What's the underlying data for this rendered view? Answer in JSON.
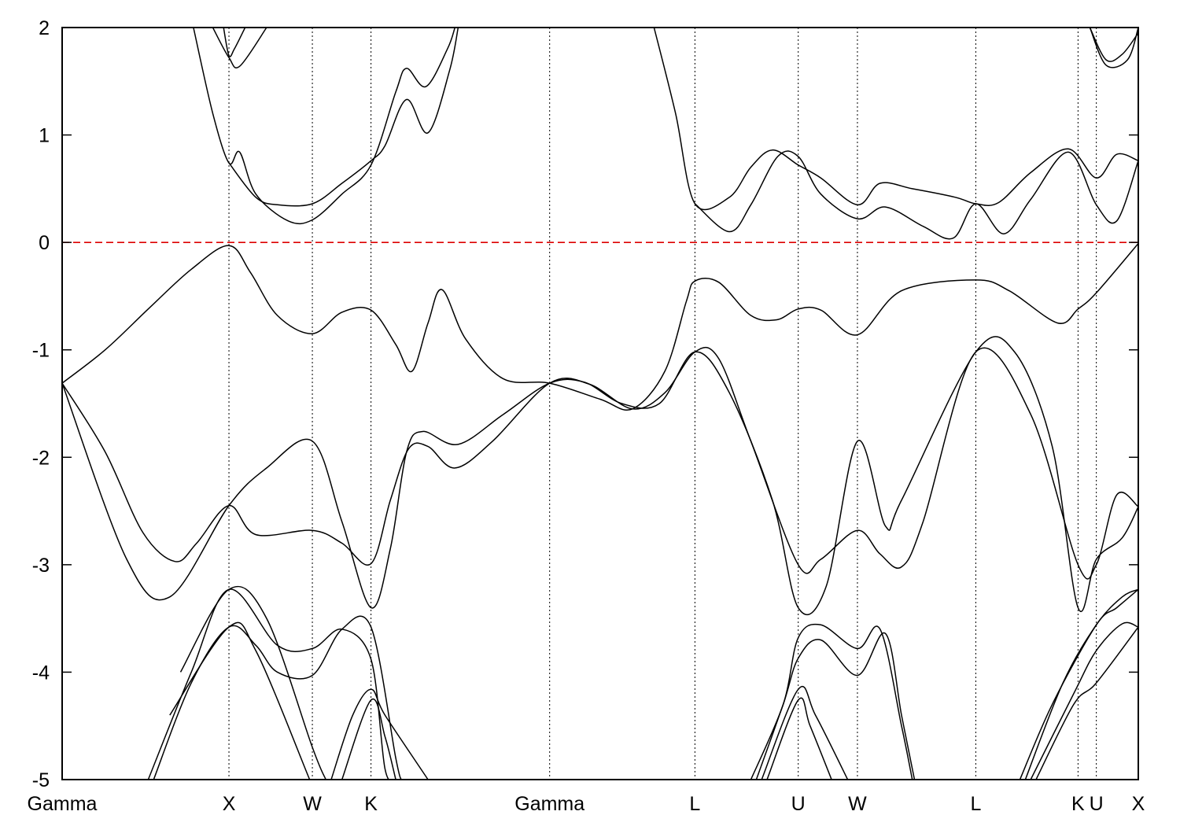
{
  "chart_data": {
    "type": "line",
    "title": "",
    "xlabel": "",
    "ylabel": "",
    "xlim": [
      0,
      1
    ],
    "ylim": [
      -5,
      2
    ],
    "yticks": [
      2,
      1,
      0,
      -1,
      -2,
      -3,
      -4,
      -5
    ],
    "ytick_labels": [
      "2",
      "1",
      "0",
      "-1",
      "-2",
      "-3",
      "-4",
      "-5"
    ],
    "kpoints": [
      {
        "label": "Gamma",
        "x": 0.0
      },
      {
        "label": "X",
        "x": 0.155
      },
      {
        "label": "W",
        "x": 0.2325
      },
      {
        "label": "K",
        "x": 0.287
      },
      {
        "label": "Gamma",
        "x": 0.453
      },
      {
        "label": "L",
        "x": 0.588
      },
      {
        "label": "U",
        "x": 0.684
      },
      {
        "label": "W",
        "x": 0.739
      },
      {
        "label": "L",
        "x": 0.849
      },
      {
        "label": "K",
        "x": 0.944
      },
      {
        "label": "U",
        "x": 0.961
      },
      {
        "label": "X",
        "x": 1.0
      }
    ],
    "fermi_level": {
      "value": 0,
      "color": "#dd0000",
      "style": "dashed"
    },
    "line_color": "#000000",
    "series": [
      {
        "points": [
          [
            0.0,
            -1.31
          ],
          [
            0.04,
            -1.0
          ],
          [
            0.08,
            -0.62
          ],
          [
            0.12,
            -0.25
          ],
          [
            0.155,
            -0.03
          ],
          [
            0.175,
            -0.28
          ],
          [
            0.2,
            -0.68
          ],
          [
            0.2325,
            -0.85
          ],
          [
            0.26,
            -0.65
          ],
          [
            0.287,
            -0.63
          ],
          [
            0.31,
            -0.95
          ],
          [
            0.325,
            -1.2
          ],
          [
            0.34,
            -0.75
          ],
          [
            0.353,
            -0.44
          ],
          [
            0.375,
            -0.9
          ],
          [
            0.41,
            -1.27
          ],
          [
            0.453,
            -1.31
          ],
          [
            0.5,
            -1.46
          ],
          [
            0.53,
            -1.55
          ],
          [
            0.56,
            -1.2
          ],
          [
            0.58,
            -0.55
          ],
          [
            0.588,
            -0.36
          ],
          [
            0.61,
            -0.37
          ],
          [
            0.64,
            -0.68
          ],
          [
            0.664,
            -0.72
          ],
          [
            0.684,
            -0.62
          ],
          [
            0.705,
            -0.63
          ],
          [
            0.739,
            -0.86
          ],
          [
            0.78,
            -0.45
          ],
          [
            0.849,
            -0.35
          ],
          [
            0.88,
            -0.45
          ],
          [
            0.925,
            -0.75
          ],
          [
            0.944,
            -0.62
          ],
          [
            0.961,
            -0.47
          ],
          [
            1.0,
            -0.01
          ]
        ]
      },
      {
        "points": [
          [
            0.0,
            -1.31
          ],
          [
            0.04,
            -1.95
          ],
          [
            0.075,
            -2.7
          ],
          [
            0.105,
            -2.97
          ],
          [
            0.125,
            -2.8
          ],
          [
            0.155,
            -2.45
          ],
          [
            0.18,
            -2.72
          ],
          [
            0.2325,
            -2.68
          ],
          [
            0.26,
            -2.8
          ],
          [
            0.287,
            -2.99
          ],
          [
            0.305,
            -2.4
          ],
          [
            0.322,
            -1.92
          ],
          [
            0.34,
            -1.9
          ],
          [
            0.365,
            -2.1
          ],
          [
            0.4,
            -1.85
          ],
          [
            0.453,
            -1.31
          ],
          [
            0.49,
            -1.32
          ],
          [
            0.53,
            -1.55
          ],
          [
            0.56,
            -1.4
          ],
          [
            0.588,
            -1.02
          ],
          [
            0.61,
            -1.08
          ],
          [
            0.64,
            -1.85
          ],
          [
            0.684,
            -3.0
          ],
          [
            0.705,
            -2.95
          ],
          [
            0.739,
            -2.68
          ],
          [
            0.76,
            -2.9
          ],
          [
            0.78,
            -3.02
          ],
          [
            0.8,
            -2.6
          ],
          [
            0.849,
            -1.02
          ],
          [
            0.9,
            -1.6
          ],
          [
            0.944,
            -3.0
          ],
          [
            0.961,
            -3.0
          ],
          [
            0.98,
            -2.35
          ],
          [
            1.0,
            -2.46
          ]
        ]
      },
      {
        "points": [
          [
            0.0,
            -1.31
          ],
          [
            0.06,
            -2.95
          ],
          [
            0.1,
            -3.3
          ],
          [
            0.155,
            -2.45
          ],
          [
            0.19,
            -2.1
          ],
          [
            0.2325,
            -1.85
          ],
          [
            0.26,
            -2.6
          ],
          [
            0.287,
            -3.4
          ],
          [
            0.305,
            -2.85
          ],
          [
            0.32,
            -1.95
          ],
          [
            0.335,
            -1.76
          ],
          [
            0.368,
            -1.88
          ],
          [
            0.41,
            -1.6
          ],
          [
            0.453,
            -1.31
          ],
          [
            0.485,
            -1.3
          ],
          [
            0.52,
            -1.5
          ],
          [
            0.555,
            -1.5
          ],
          [
            0.588,
            -1.02
          ],
          [
            0.62,
            -1.4
          ],
          [
            0.66,
            -2.4
          ],
          [
            0.684,
            -3.4
          ],
          [
            0.71,
            -3.2
          ],
          [
            0.739,
            -1.85
          ],
          [
            0.765,
            -2.64
          ],
          [
            0.78,
            -2.4
          ],
          [
            0.849,
            -1.02
          ],
          [
            0.885,
            -1.02
          ],
          [
            0.92,
            -1.9
          ],
          [
            0.944,
            -3.4
          ],
          [
            0.961,
            -2.95
          ],
          [
            0.985,
            -2.75
          ],
          [
            1.0,
            -2.46
          ]
        ]
      },
      {
        "points": [
          [
            0.155,
            0.74
          ],
          [
            0.18,
            0.42
          ],
          [
            0.2,
            0.35
          ],
          [
            0.2325,
            0.36
          ],
          [
            0.26,
            0.55
          ],
          [
            0.287,
            0.76
          ],
          [
            0.3,
            0.9
          ],
          [
            0.32,
            1.33
          ],
          [
            0.34,
            1.02
          ],
          [
            0.36,
            1.6
          ],
          [
            0.368,
            2.0
          ]
        ]
      },
      {
        "points": [
          [
            0.122,
            2.0
          ],
          [
            0.14,
            1.2
          ],
          [
            0.155,
            0.74
          ],
          [
            0.165,
            0.84
          ],
          [
            0.18,
            0.45
          ],
          [
            0.21,
            0.2
          ],
          [
            0.2325,
            0.21
          ],
          [
            0.26,
            0.45
          ],
          [
            0.287,
            0.72
          ],
          [
            0.31,
            1.4
          ],
          [
            0.32,
            1.62
          ],
          [
            0.338,
            1.45
          ],
          [
            0.358,
            1.8
          ],
          [
            0.365,
            2.0
          ]
        ]
      },
      {
        "points": [
          [
            0.15,
            2.0
          ],
          [
            0.155,
            1.74
          ],
          [
            0.16,
            1.8
          ],
          [
            0.17,
            2.0
          ]
        ]
      },
      {
        "points": [
          [
            0.14,
            2.0
          ],
          [
            0.155,
            1.72
          ],
          [
            0.165,
            1.64
          ],
          [
            0.19,
            2.0
          ]
        ]
      },
      {
        "points": [
          [
            0.55,
            2.0
          ],
          [
            0.57,
            1.2
          ],
          [
            0.588,
            0.36
          ],
          [
            0.62,
            0.42
          ],
          [
            0.64,
            0.7
          ],
          [
            0.66,
            0.86
          ],
          [
            0.684,
            0.72
          ],
          [
            0.705,
            0.6
          ],
          [
            0.739,
            0.35
          ],
          [
            0.76,
            0.55
          ],
          [
            0.79,
            0.5
          ],
          [
            0.83,
            0.42
          ],
          [
            0.849,
            0.36
          ],
          [
            0.87,
            0.37
          ],
          [
            0.9,
            0.65
          ],
          [
            0.935,
            0.87
          ],
          [
            0.961,
            0.6
          ],
          [
            0.98,
            0.82
          ],
          [
            1.0,
            0.76
          ]
        ]
      },
      {
        "points": [
          [
            0.588,
            0.36
          ],
          [
            0.62,
            0.1
          ],
          [
            0.64,
            0.35
          ],
          [
            0.665,
            0.8
          ],
          [
            0.684,
            0.8
          ],
          [
            0.705,
            0.45
          ],
          [
            0.739,
            0.22
          ],
          [
            0.765,
            0.33
          ],
          [
            0.8,
            0.15
          ],
          [
            0.828,
            0.04
          ],
          [
            0.849,
            0.36
          ],
          [
            0.875,
            0.08
          ],
          [
            0.9,
            0.4
          ],
          [
            0.935,
            0.84
          ],
          [
            0.961,
            0.35
          ],
          [
            0.98,
            0.2
          ],
          [
            1.0,
            0.76
          ]
        ]
      },
      {
        "points": [
          [
            0.955,
            2.0
          ],
          [
            0.97,
            1.7
          ],
          [
            0.985,
            1.75
          ],
          [
            1.0,
            1.95
          ]
        ]
      },
      {
        "points": [
          [
            0.955,
            2.0
          ],
          [
            0.97,
            1.65
          ],
          [
            0.99,
            1.7
          ],
          [
            1.0,
            2.0
          ]
        ]
      },
      {
        "points": [
          [
            0.08,
            -5.0
          ],
          [
            0.12,
            -4.0
          ],
          [
            0.155,
            -3.23
          ],
          [
            0.2,
            -3.75
          ],
          [
            0.2325,
            -3.78
          ],
          [
            0.26,
            -3.6
          ],
          [
            0.287,
            -3.88
          ],
          [
            0.3,
            -4.9
          ],
          [
            0.31,
            -5.0
          ]
        ]
      },
      {
        "points": [
          [
            0.085,
            -5.0
          ],
          [
            0.12,
            -4.1
          ],
          [
            0.155,
            -3.58
          ],
          [
            0.18,
            -3.75
          ],
          [
            0.2,
            -4.0
          ],
          [
            0.2325,
            -4.03
          ],
          [
            0.26,
            -3.6
          ],
          [
            0.287,
            -3.58
          ],
          [
            0.31,
            -4.8
          ],
          [
            0.315,
            -5.0
          ]
        ]
      },
      {
        "points": [
          [
            0.11,
            -4.0
          ],
          [
            0.155,
            -3.23
          ],
          [
            0.19,
            -3.5
          ],
          [
            0.2325,
            -4.7
          ],
          [
            0.245,
            -5.0
          ]
        ]
      },
      {
        "points": [
          [
            0.1,
            -4.4
          ],
          [
            0.155,
            -3.58
          ],
          [
            0.18,
            -3.8
          ],
          [
            0.23,
            -5.0
          ]
        ]
      },
      {
        "points": [
          [
            0.25,
            -5.0
          ],
          [
            0.27,
            -4.4
          ],
          [
            0.287,
            -4.16
          ],
          [
            0.3,
            -4.4
          ],
          [
            0.34,
            -5.0
          ]
        ]
      },
      {
        "points": [
          [
            0.26,
            -5.0
          ],
          [
            0.287,
            -4.26
          ],
          [
            0.3,
            -4.6
          ],
          [
            0.31,
            -5.0
          ]
        ]
      },
      {
        "points": [
          [
            0.64,
            -5.0
          ],
          [
            0.67,
            -4.3
          ],
          [
            0.684,
            -3.68
          ],
          [
            0.705,
            -3.56
          ],
          [
            0.739,
            -3.78
          ],
          [
            0.76,
            -3.6
          ],
          [
            0.78,
            -4.5
          ],
          [
            0.79,
            -5.0
          ]
        ]
      },
      {
        "points": [
          [
            0.645,
            -5.0
          ],
          [
            0.67,
            -4.3
          ],
          [
            0.684,
            -3.87
          ],
          [
            0.705,
            -3.7
          ],
          [
            0.739,
            -4.03
          ],
          [
            0.765,
            -3.64
          ],
          [
            0.78,
            -4.4
          ],
          [
            0.792,
            -5.0
          ]
        ]
      },
      {
        "points": [
          [
            0.65,
            -5.0
          ],
          [
            0.684,
            -4.16
          ],
          [
            0.7,
            -4.4
          ],
          [
            0.73,
            -5.0
          ]
        ]
      },
      {
        "points": [
          [
            0.655,
            -5.0
          ],
          [
            0.684,
            -4.26
          ],
          [
            0.695,
            -4.5
          ],
          [
            0.715,
            -5.0
          ]
        ]
      },
      {
        "points": [
          [
            0.89,
            -5.0
          ],
          [
            0.92,
            -4.3
          ],
          [
            0.961,
            -3.56
          ],
          [
            0.98,
            -3.4
          ],
          [
            1.0,
            -3.23
          ]
        ]
      },
      {
        "points": [
          [
            0.895,
            -5.0
          ],
          [
            0.93,
            -4.1
          ],
          [
            0.961,
            -3.56
          ],
          [
            0.985,
            -3.3
          ],
          [
            1.0,
            -3.23
          ]
        ]
      },
      {
        "points": [
          [
            0.9,
            -5.0
          ],
          [
            0.94,
            -4.2
          ],
          [
            0.961,
            -3.8
          ],
          [
            0.985,
            -3.55
          ],
          [
            1.0,
            -3.58
          ]
        ]
      },
      {
        "points": [
          [
            0.905,
            -5.0
          ],
          [
            0.94,
            -4.3
          ],
          [
            0.961,
            -4.1
          ],
          [
            1.0,
            -3.58
          ]
        ]
      }
    ]
  }
}
